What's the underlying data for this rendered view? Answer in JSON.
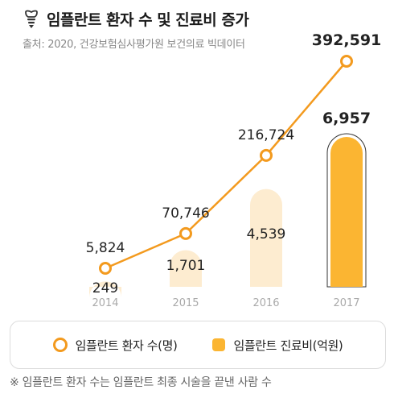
{
  "title": "임플란트 환자 수 및 진료비 증가",
  "source": "출처: 2020, 건강보험심사평가원 보건의료 빅데이터",
  "icon": "tooth-icon",
  "colors": {
    "line": "#f39a1e",
    "bar_faded": "#fdecd0",
    "bar_highlight": "#fbb532",
    "bar_outline": "#333333",
    "year_label": "#aaaaaa"
  },
  "chart_data": {
    "type": "bar+line",
    "categories": [
      "2014",
      "2015",
      "2016",
      "2017"
    ],
    "series": [
      {
        "name": "임플란트 환자 수(명)",
        "type": "line",
        "values": [
          5824,
          70746,
          216724,
          392591
        ],
        "labels": [
          "5,824",
          "70,746",
          "216,724",
          "392,591"
        ]
      },
      {
        "name": "임플란트 진료비(억원)",
        "type": "bar",
        "values": [
          249,
          1701,
          4539,
          6957
        ],
        "labels": [
          "249",
          "1,701",
          "4,539",
          "6,957"
        ]
      }
    ],
    "highlight_category": "2017",
    "grid": false,
    "legend_position": "bottom"
  },
  "legend": {
    "line_label": "임플란트 환자 수(명)",
    "bar_label": "임플란트 진료비(억원)"
  },
  "footnote": "※ 임플란트 환자 수는 임플란트 최종 시술을 끝낸 사람 수"
}
